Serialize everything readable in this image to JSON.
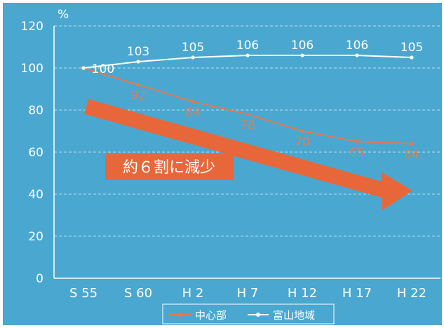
{
  "colors": {
    "background": "#4aa7cf",
    "frame": "#ffffff",
    "grid": "#cfe9f5",
    "series_center": "#e07a4f",
    "series_toyama": "#ffffff",
    "arrow": "#e8673a"
  },
  "annotation": "約６割に減少",
  "chart_data": {
    "type": "line",
    "title": "",
    "xlabel": "",
    "ylabel": "%",
    "ylim": [
      0,
      120
    ],
    "yticks": [
      0,
      20,
      40,
      60,
      80,
      100,
      120
    ],
    "grid": true,
    "legend_position": "bottom",
    "categories": [
      "S 55",
      "S 60",
      "H 2",
      "H 7",
      "H 12",
      "H 17",
      "H 22"
    ],
    "series": [
      {
        "name": "中心部",
        "values": [
          100,
          92,
          84,
          78,
          70,
          65,
          64
        ],
        "color": "#e07a4f",
        "value_labels": [
          "",
          "92",
          "84",
          "78",
          "70",
          "65",
          "64"
        ]
      },
      {
        "name": "富山地域",
        "values": [
          100,
          103,
          105,
          106,
          106,
          106,
          105
        ],
        "color": "#ffffff",
        "value_labels": [
          "100",
          "103",
          "105",
          "106",
          "106",
          "106",
          "105"
        ]
      }
    ]
  }
}
